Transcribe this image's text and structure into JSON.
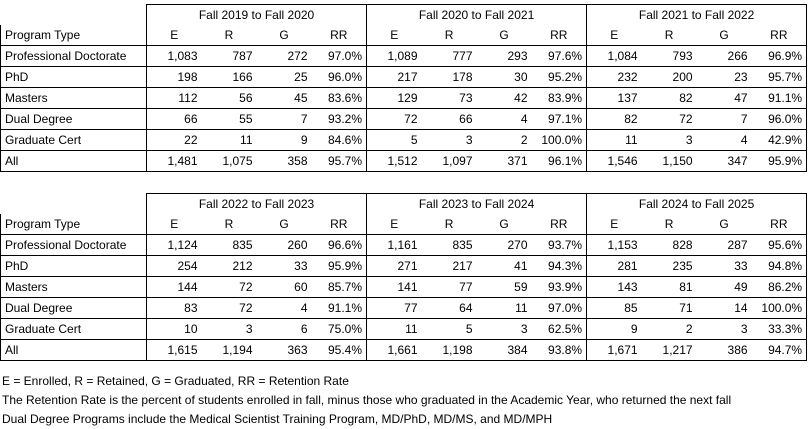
{
  "tables": [
    {
      "periods": [
        "Fall 2019 to Fall 2020",
        "Fall 2020 to Fall 2021",
        "Fall 2021 to Fall 2022"
      ],
      "row_header": "Program Type",
      "col_headers": [
        "E",
        "R",
        "G",
        "RR"
      ],
      "rows": [
        {
          "label": "Professional Doctorate",
          "cells": [
            "1,083",
            "787",
            "272",
            "97.0%",
            "1,089",
            "777",
            "293",
            "97.6%",
            "1,084",
            "793",
            "266",
            "96.9%"
          ]
        },
        {
          "label": "PhD",
          "cells": [
            "198",
            "166",
            "25",
            "96.0%",
            "217",
            "178",
            "30",
            "95.2%",
            "232",
            "200",
            "23",
            "95.7%"
          ]
        },
        {
          "label": "Masters",
          "cells": [
            "112",
            "56",
            "45",
            "83.6%",
            "129",
            "73",
            "42",
            "83.9%",
            "137",
            "82",
            "47",
            "91.1%"
          ]
        },
        {
          "label": "Dual Degree",
          "cells": [
            "66",
            "55",
            "7",
            "93.2%",
            "72",
            "66",
            "4",
            "97.1%",
            "82",
            "72",
            "7",
            "96.0%"
          ]
        },
        {
          "label": "Graduate Cert",
          "cells": [
            "22",
            "11",
            "9",
            "84.6%",
            "5",
            "3",
            "2",
            "100.0%",
            "11",
            "3",
            "4",
            "42.9%"
          ]
        },
        {
          "label": "All",
          "cells": [
            "1,481",
            "1,075",
            "358",
            "95.7%",
            "1,512",
            "1,097",
            "371",
            "96.1%",
            "1,546",
            "1,150",
            "347",
            "95.9%"
          ]
        }
      ]
    },
    {
      "periods": [
        "Fall 2022 to Fall 2023",
        "Fall 2023 to Fall 2024",
        "Fall 2024 to Fall 2025"
      ],
      "row_header": "Program Type",
      "col_headers": [
        "E",
        "R",
        "G",
        "RR"
      ],
      "rows": [
        {
          "label": "Professional Doctorate",
          "cells": [
            "1,124",
            "835",
            "260",
            "96.6%",
            "1,161",
            "835",
            "270",
            "93.7%",
            "1,153",
            "828",
            "287",
            "95.6%"
          ]
        },
        {
          "label": "PhD",
          "cells": [
            "254",
            "212",
            "33",
            "95.9%",
            "271",
            "217",
            "41",
            "94.3%",
            "281",
            "235",
            "33",
            "94.8%"
          ]
        },
        {
          "label": "Masters",
          "cells": [
            "144",
            "72",
            "60",
            "85.7%",
            "141",
            "77",
            "59",
            "93.9%",
            "143",
            "81",
            "49",
            "86.2%"
          ]
        },
        {
          "label": "Dual Degree",
          "cells": [
            "83",
            "72",
            "4",
            "91.1%",
            "77",
            "64",
            "11",
            "97.0%",
            "85",
            "71",
            "14",
            "100.0%"
          ]
        },
        {
          "label": "Graduate Cert",
          "cells": [
            "10",
            "3",
            "6",
            "75.0%",
            "11",
            "5",
            "3",
            "62.5%",
            "9",
            "2",
            "3",
            "33.3%"
          ]
        },
        {
          "label": "All",
          "cells": [
            "1,615",
            "1,194",
            "363",
            "95.4%",
            "1,661",
            "1,198",
            "384",
            "93.8%",
            "1,671",
            "1,217",
            "386",
            "94.7%"
          ]
        }
      ]
    }
  ],
  "notes": [
    "E = Enrolled, R = Retained, G = Graduated, RR = Retention Rate",
    "The Retention Rate is the percent of students enrolled in fall, minus those who graduated in the Academic Year, who returned the next fall",
    "Dual Degree Programs include the Medical Scientist Training Program, MD/PhD, MD/MS, and MD/MPH"
  ]
}
